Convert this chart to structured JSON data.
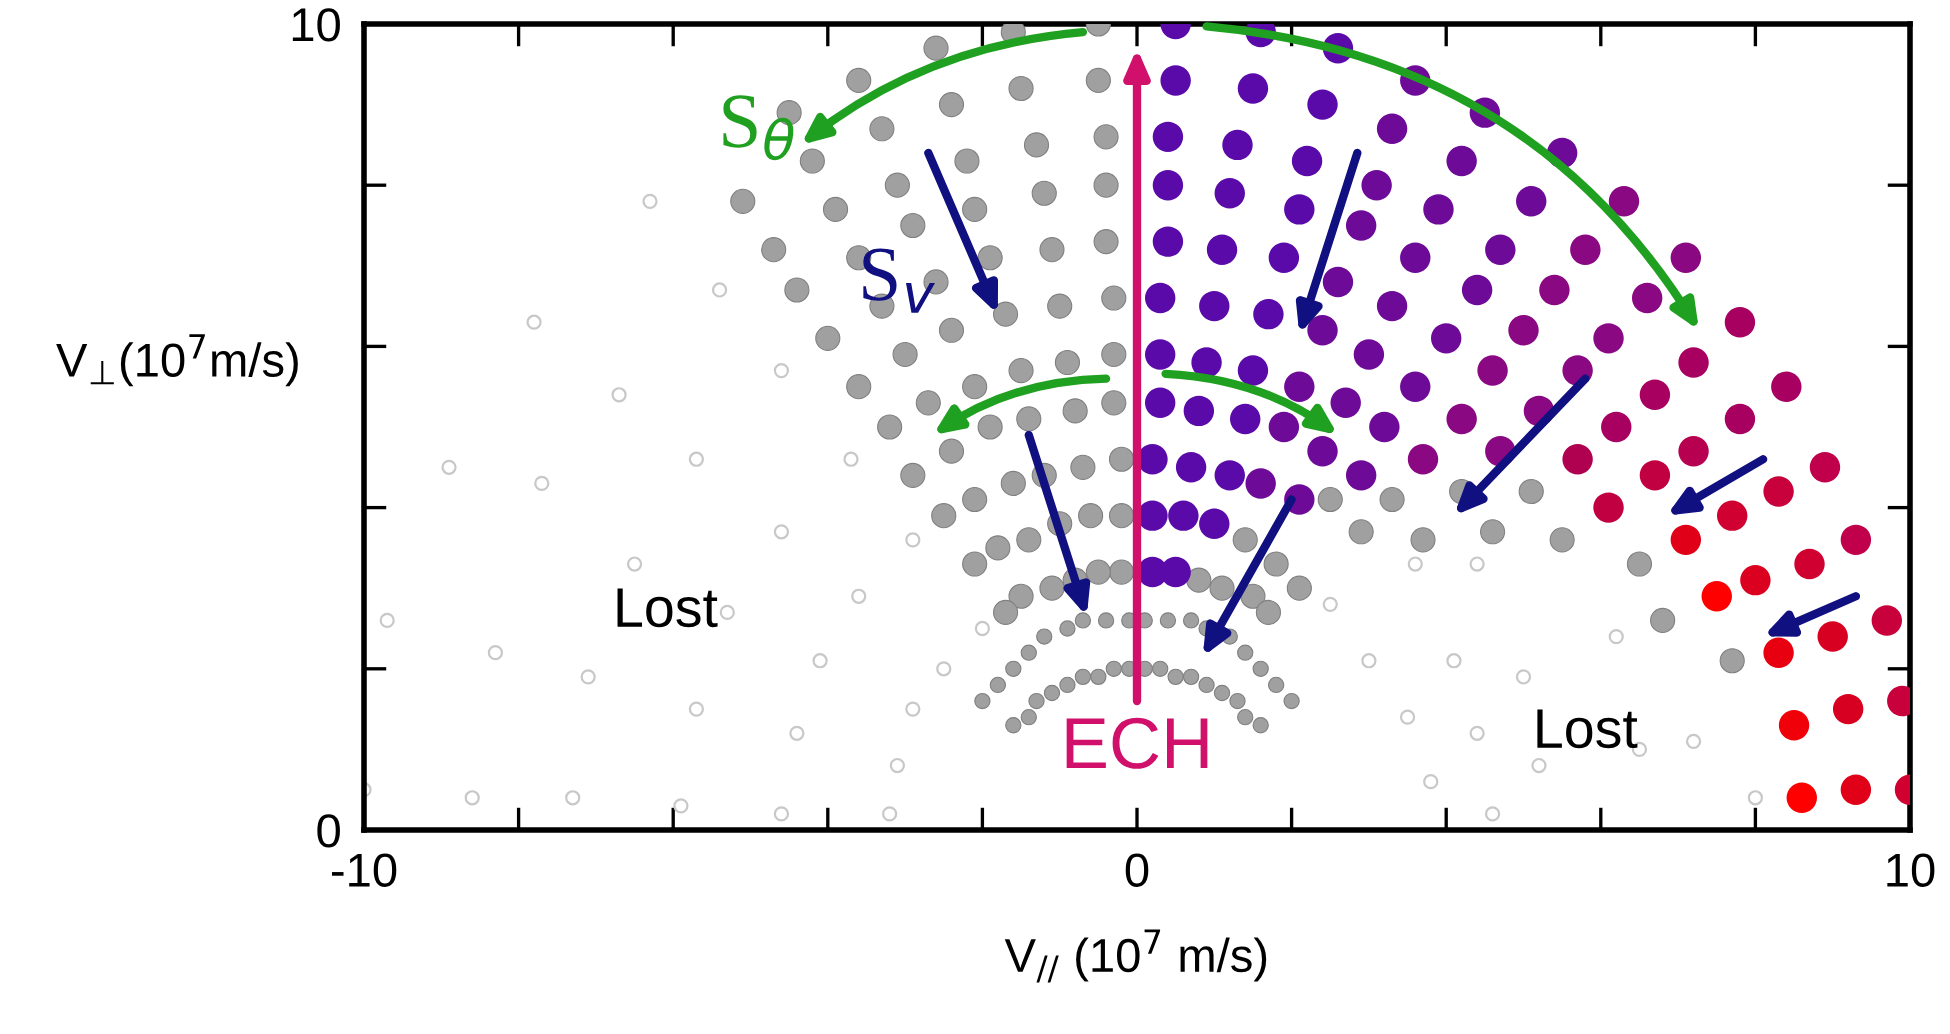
{
  "chart_data": {
    "type": "scatter",
    "xlabel": "V$_{//}$ (10$^{7}$ m/s)",
    "ylabel": "V$_{⊥}$(10$^{7}$m/s)",
    "xlim": [
      -10,
      10
    ],
    "ylim": [
      0,
      10
    ],
    "xticks": [
      -10,
      {
        "value": -8,
        "label": null
      },
      {
        "value": -6,
        "label": null
      },
      {
        "value": -4,
        "label": null
      },
      {
        "value": -2,
        "label": null
      },
      0,
      {
        "value": 2,
        "label": null
      },
      {
        "value": 4,
        "label": null
      },
      {
        "value": 6,
        "label": null
      },
      {
        "value": 8,
        "label": null
      },
      10
    ],
    "yticks": [
      0,
      {
        "value": 2,
        "label": null
      },
      {
        "value": 4,
        "label": null
      },
      {
        "value": 6,
        "label": null
      },
      {
        "value": 8,
        "label": null
      },
      10
    ],
    "grid": false,
    "marker": "circle",
    "series": [
      {
        "color": "#c8c8c8",
        "x": [
          -6.3,
          -7.8,
          -8.9,
          -9.7,
          -10.0,
          -5.4,
          -6.7,
          -7.7,
          -8.3,
          -8.6,
          -4.6,
          -5.7,
          -6.5,
          -7.1,
          -7.3,
          -3.7,
          -4.6,
          -5.3,
          -5.7,
          -5.9,
          -2.9,
          -3.6,
          -4.1,
          -4.4,
          -4.6,
          -2.0,
          -2.5,
          -2.9,
          -3.1,
          -3.2,
          8.0,
          6.2,
          6.5,
          4.4,
          5.0,
          5.2,
          2.5,
          3.0,
          3.5,
          3.8,
          7.2,
          3.6,
          4.1,
          4.4,
          4.6
        ],
        "values": [
          7.8,
          6.3,
          4.5,
          2.6,
          0.5,
          6.7,
          5.4,
          4.3,
          2.2,
          0.4,
          5.7,
          4.6,
          3.3,
          1.9,
          0.4,
          4.6,
          3.7,
          2.7,
          1.5,
          0.3,
          3.6,
          2.9,
          2.1,
          1.2,
          0.2,
          2.5,
          2.0,
          1.5,
          0.8,
          0.2,
          0.4,
          2.4,
          1.0,
          3.3,
          1.9,
          0.8,
          2.8,
          2.1,
          1.4,
          0.6,
          1.1,
          3.3,
          2.1,
          1.2,
          0.2
        ]
      },
      {
        "color": "#a0a0a0",
        "x": [
          -0.5,
          -1.6,
          -2.6,
          -3.6,
          -4.5,
          -0.5,
          -1.5,
          -2.4,
          -3.3,
          -4.2,
          -5.1,
          -0.4,
          -1.3,
          -2.2,
          -3.1,
          -3.9,
          -4.7,
          -0.4,
          -1.2,
          -2.1,
          -2.9,
          -3.6,
          -4.4,
          -0.4,
          -1.1,
          -1.9,
          -2.6,
          -3.3,
          -4.0,
          -0.3,
          -1.0,
          -1.7,
          -2.4,
          -3.0,
          -3.6,
          -0.3,
          -0.9,
          -1.5,
          -2.1,
          -2.7,
          -3.2,
          -0.3,
          -0.8,
          -1.4,
          -1.9,
          -2.4,
          -2.9,
          -0.2,
          -0.7,
          -1.2,
          -1.6,
          -2.1,
          -2.5,
          -0.2,
          -0.6,
          -1.0,
          -1.4,
          -1.8,
          -2.1,
          -0.2,
          -0.5,
          -0.8,
          -1.1,
          -1.5,
          -1.7,
          7.7,
          6.5,
          6.8,
          5.1,
          5.5,
          4.2,
          4.6,
          3.3,
          3.7,
          2.5,
          2.9,
          1.4,
          1.8,
          2.1,
          0.8,
          1.1,
          1.5,
          1.7
        ],
        "values": [
          10.0,
          9.9,
          9.7,
          9.3,
          8.9,
          9.3,
          9.2,
          9.0,
          8.7,
          8.3,
          7.8,
          8.6,
          8.5,
          8.3,
          8.0,
          7.7,
          7.2,
          8.0,
          7.9,
          7.7,
          7.5,
          7.1,
          6.7,
          7.3,
          7.2,
          7.1,
          6.8,
          6.5,
          6.1,
          6.6,
          6.5,
          6.4,
          6.2,
          5.9,
          5.5,
          5.9,
          5.8,
          5.7,
          5.5,
          5.3,
          5.0,
          5.3,
          5.2,
          5.1,
          5.0,
          4.7,
          4.4,
          4.6,
          4.5,
          4.4,
          4.3,
          4.1,
          3.9,
          3.9,
          3.9,
          3.8,
          3.6,
          3.5,
          3.3,
          3.2,
          3.2,
          3.1,
          3.0,
          2.9,
          2.7,
          2.1,
          3.3,
          2.6,
          4.2,
          3.6,
          4.2,
          3.7,
          4.1,
          3.6,
          4.1,
          3.7,
          3.6,
          3.3,
          3.0,
          3.1,
          3.0,
          2.9,
          2.7
        ]
      },
      {
        "color": "#a0a0a0",
        "x": [
          2.0,
          1.8,
          1.6,
          1.4,
          1.2,
          0.9,
          0.7,
          0.4,
          0.1,
          -0.1,
          -0.4,
          -0.7,
          -0.9,
          -1.2,
          -1.4,
          -1.6,
          -1.8,
          -2.0,
          1.6,
          1.4,
          1.3,
          1.1,
          0.9,
          0.7,
          0.5,
          0.3,
          0.1,
          -0.1,
          -0.3,
          -0.5,
          -0.7,
          -0.9,
          -1.1,
          -1.3,
          -1.4,
          -1.6
        ],
        "values": [
          1.6,
          1.8,
          2.0,
          2.2,
          2.4,
          2.5,
          2.6,
          2.6,
          2.6,
          2.6,
          2.6,
          2.6,
          2.5,
          2.4,
          2.2,
          2.0,
          1.8,
          1.6,
          1.3,
          1.4,
          1.6,
          1.7,
          1.8,
          1.9,
          1.9,
          2.0,
          2.0,
          2.0,
          2.0,
          1.9,
          1.9,
          1.8,
          1.7,
          1.6,
          1.4,
          1.3
        ]
      },
      {
        "x": [
          0.5,
          1.6,
          2.6,
          3.6,
          4.5,
          5.5,
          6.3,
          7.1,
          7.8,
          8.4,
          8.9,
          9.3,
          9.7,
          9.9,
          10.0,
          0.5,
          1.5,
          2.4,
          3.3,
          4.2,
          5.1,
          5.8,
          6.6,
          7.2,
          7.8,
          8.3,
          8.7,
          9.0,
          9.2,
          9.3,
          0.4,
          1.3,
          2.2,
          3.1,
          3.9,
          4.7,
          5.4,
          6.1,
          6.7,
          7.2,
          7.7,
          8.0,
          8.3,
          8.5,
          8.6,
          0.4,
          1.2,
          2.1,
          2.9,
          3.6,
          4.4,
          5.0,
          5.7,
          6.2,
          6.7,
          7.1,
          7.5,
          0.4,
          1.1,
          1.9,
          2.6,
          3.3,
          4.0,
          4.6,
          5.2,
          5.7,
          6.1,
          0.3,
          1.0,
          1.7,
          2.4,
          3.0,
          3.6,
          4.2,
          4.7,
          0.3,
          0.9,
          1.5,
          2.1,
          2.7,
          3.2,
          3.7,
          0.3,
          0.8,
          1.4,
          1.9,
          2.4,
          2.9,
          0.2,
          0.7,
          1.2,
          1.6,
          2.1,
          0.2,
          0.6,
          1.0,
          0.2,
          0.5
        ],
        "values": [
          10.0,
          9.9,
          9.7,
          9.3,
          8.9,
          8.4,
          7.8,
          7.1,
          6.3,
          5.5,
          4.5,
          3.6,
          2.6,
          1.6,
          0.5,
          9.3,
          9.2,
          9.0,
          8.7,
          8.3,
          7.8,
          7.2,
          6.6,
          5.8,
          5.1,
          4.2,
          3.3,
          2.4,
          1.5,
          0.5,
          8.6,
          8.5,
          8.3,
          8.0,
          7.7,
          7.2,
          6.7,
          6.1,
          5.4,
          4.7,
          3.9,
          3.1,
          2.2,
          1.3,
          0.4,
          8.0,
          7.9,
          7.7,
          7.5,
          7.1,
          6.7,
          6.2,
          5.7,
          5.0,
          4.4,
          3.6,
          2.9,
          7.3,
          7.2,
          7.1,
          6.8,
          6.5,
          6.1,
          5.7,
          5.2,
          4.6,
          4.0,
          6.6,
          6.5,
          6.4,
          6.2,
          5.9,
          5.5,
          5.1,
          4.7,
          5.9,
          5.8,
          5.7,
          5.5,
          5.3,
          5.0,
          4.6,
          5.3,
          5.2,
          5.1,
          5.0,
          4.7,
          4.4,
          4.6,
          4.5,
          4.4,
          4.3,
          4.1,
          3.9,
          3.9,
          3.8,
          3.2,
          3.2
        ],
        "colors": [
          "#5b0aaa",
          "#5b0aaa",
          "#5b0aaa",
          "#6e0a98",
          "#6e0a98",
          "#6e0a98",
          "#8a0882",
          "#8a0882",
          "#a80060",
          "#a80060",
          "#c0004a",
          "#c0004a",
          "#c8003c",
          "#c8003c",
          "#d00030",
          "#5b0aaa",
          "#5b0aaa",
          "#5b0aaa",
          "#6e0a98",
          "#6e0a98",
          "#6e0a98",
          "#8a0882",
          "#8a0882",
          "#a80060",
          "#a80060",
          "#c8003c",
          "#d00030",
          "#d80020",
          "#d80020",
          "#e00018",
          "#5b0aaa",
          "#5b0aaa",
          "#5b0aaa",
          "#6e0a98",
          "#6e0a98",
          "#6e0a98",
          "#8a0882",
          "#8a0882",
          "#a80060",
          "#b80050",
          "#d00030",
          "#dc0020",
          "#e80010",
          "#f00008",
          "#ff0000",
          "#5b0aaa",
          "#5b0aaa",
          "#5b0aaa",
          "#6e0a98",
          "#6e0a98",
          "#6e0a98",
          "#8a0882",
          "#8a0882",
          "#a80060",
          "#c00040",
          "#e00018",
          "#ff0000",
          "#5b0aaa",
          "#5b0aaa",
          "#5b0aaa",
          "#6e0a98",
          "#6e0a98",
          "#6e0a98",
          "#8a0882",
          "#8a0882",
          "#b00050",
          "#c00040",
          "#5b0aaa",
          "#5b0aaa",
          "#5b0aaa",
          "#6e0a98",
          "#6e0a98",
          "#6e0a98",
          "#8a0882",
          "#8a0882",
          "#5b0aaa",
          "#5b0aaa",
          "#5b0aaa",
          "#6e0a98",
          "#6e0a98",
          "#6e0a98",
          "#8a0882",
          "#5b0aaa",
          "#5b0aaa",
          "#5b0aaa",
          "#6e0a98",
          "#6e0a98",
          "#6e0a98",
          "#5b0aaa",
          "#5b0aaa",
          "#5b0aaa",
          "#6e0a98",
          "#6e0a98",
          "#5b0aaa",
          "#5b0aaa",
          "#5b0aaa",
          "#5b0aaa",
          "#5b0aaa"
        ]
      }
    ],
    "annotations": [
      "Lost",
      "Lost",
      "ECH",
      "S$_{θ}$",
      "S$_{v}$"
    ]
  }
}
